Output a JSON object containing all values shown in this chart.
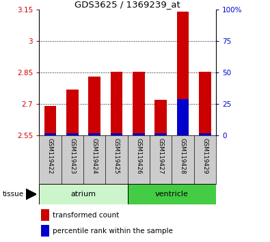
{
  "title": "GDS3625 / 1369239_at",
  "samples": [
    "GSM119422",
    "GSM119423",
    "GSM119424",
    "GSM119425",
    "GSM119426",
    "GSM119427",
    "GSM119428",
    "GSM119429"
  ],
  "red_values": [
    2.69,
    2.77,
    2.83,
    2.855,
    2.855,
    2.72,
    3.14,
    2.855
  ],
  "blue_values": [
    0.012,
    0.012,
    0.012,
    0.012,
    0.012,
    0.012,
    0.175,
    0.012
  ],
  "bar_bottom": 2.55,
  "ylim_left": [
    2.55,
    3.15
  ],
  "ylim_right": [
    0,
    100
  ],
  "yticks_left": [
    2.55,
    2.7,
    2.85,
    3.0,
    3.15
  ],
  "yticks_right": [
    0,
    25,
    50,
    75,
    100
  ],
  "ytick_labels_left": [
    "2.55",
    "2.7",
    "2.85",
    "3",
    "3.15"
  ],
  "ytick_labels_right": [
    "0",
    "25",
    "50",
    "75",
    "100%"
  ],
  "grid_yticks": [
    2.7,
    2.85,
    3.0
  ],
  "groups": [
    {
      "label": "atrium",
      "start": 0,
      "end": 4,
      "color": "#ccf5cc"
    },
    {
      "label": "ventricle",
      "start": 4,
      "end": 8,
      "color": "#44cc44"
    }
  ],
  "tissue_label": "tissue",
  "red_color": "#cc0000",
  "blue_color": "#0000cc",
  "bar_width": 0.55,
  "legend_labels": [
    "transformed count",
    "percentile rank within the sample"
  ],
  "tick_color_left": "#cc0000",
  "tick_color_right": "#0000cc",
  "sample_area_bg": "#cccccc",
  "plot_bg": "#ffffff",
  "atrium_color": "#ccffcc",
  "ventricle_color": "#44dd44"
}
